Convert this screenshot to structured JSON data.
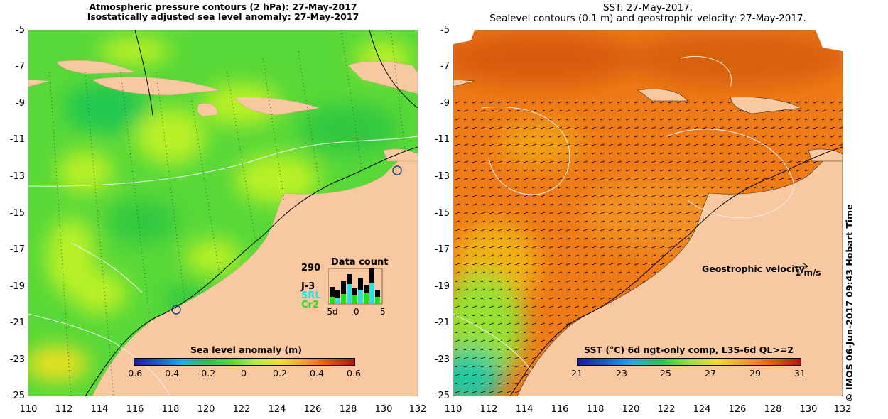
{
  "left_panel": {
    "title_line1": "Atmospheric pressure contours (2 hPa): 27-May-2017",
    "title_line2": "Isostatically adjusted sea level anomaly: 27-May-2017",
    "colorbar_label": "Sea level anomaly (m)",
    "colorbar_ticks": [
      "-0.6",
      "-0.4",
      "-0.2",
      "0",
      "0.2",
      "0.4",
      "0.6"
    ],
    "colorbar_colors": [
      "#1a1a9a",
      "#1e5ae6",
      "#18b4e0",
      "#20c850",
      "#58d838",
      "#b8f028",
      "#f0e018",
      "#f0a018",
      "#e05010",
      "#c01010"
    ],
    "data_count": {
      "max_label": "290",
      "title": "Data count",
      "series": [
        {
          "name": "J-3",
          "color": "#000000"
        },
        {
          "name": "SRL",
          "color": "#30e0e0"
        },
        {
          "name": "Cr2",
          "color": "#20e020"
        }
      ],
      "xticks": [
        "-5d",
        "0",
        "5"
      ]
    }
  },
  "right_panel": {
    "title_line1": "SST: 27-May-2017.",
    "title_line2": "Sealevel contours (0.1 m) and geostrophic velocity: 27-May-2017.",
    "colorbar_label": "SST (°C) 6d ngt-only comp, L3S-6d QL>=2",
    "colorbar_ticks": [
      "21",
      "23",
      "25",
      "27",
      "29",
      "31"
    ],
    "colorbar_colors": [
      "#1a1a9a",
      "#1e5ae6",
      "#18b4e0",
      "#20c850",
      "#98e030",
      "#f0e018",
      "#f0a018",
      "#e06010",
      "#c01010"
    ],
    "velocity_label": "Geostrophic velocity",
    "velocity_scale": "1 m/s"
  },
  "axes": {
    "lat_labels": [
      "-5",
      "-7",
      "-9",
      "-11",
      "-13",
      "-15",
      "-17",
      "-19",
      "-21",
      "-23",
      "-25"
    ],
    "lon_labels": [
      "110",
      "112",
      "114",
      "116",
      "118",
      "120",
      "122",
      "124",
      "126",
      "128",
      "130",
      "132"
    ]
  },
  "colors": {
    "land": "#f8c8a0",
    "sea_green": "#55d838",
    "sst_orange": "#f07818"
  },
  "side_label": "© IMOS 06-Jun-2017 09:43 Hobart Time"
}
